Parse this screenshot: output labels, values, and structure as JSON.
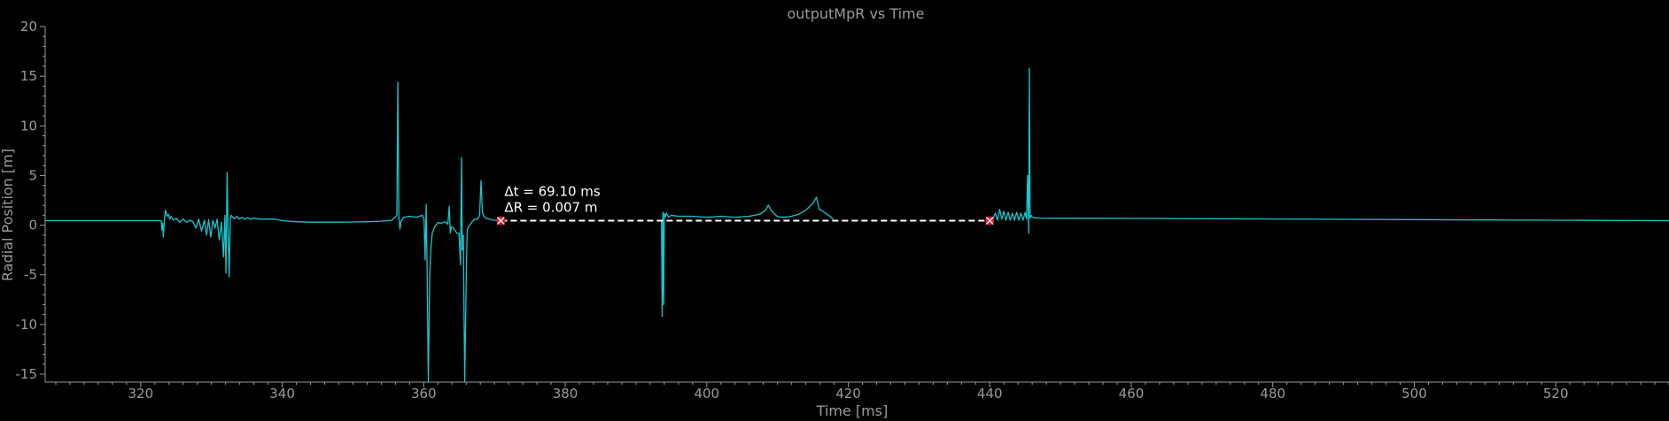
{
  "chart_data": {
    "type": "line",
    "title": "outputMpR vs Time",
    "xlabel": "Time [ms]",
    "ylabel": "Radial Position [m]",
    "xlim": [
      306.5,
      536
    ],
    "ylim": [
      -15.8,
      20
    ],
    "xticks": [
      320,
      340,
      360,
      380,
      400,
      420,
      440,
      460,
      480,
      500,
      520
    ],
    "xtick_labels": [
      "320",
      "340",
      "360",
      "380",
      "400",
      "420",
      "440",
      "460",
      "480",
      "500",
      "520"
    ],
    "yticks": [
      -15,
      -10,
      -5,
      0,
      5,
      10,
      15,
      20
    ],
    "ytick_labels": [
      "-15",
      "-10",
      "-5",
      "0",
      "5",
      "10",
      "15",
      "20"
    ],
    "grid": false,
    "series": [
      {
        "color": "#17c6cf",
        "x": [
          306.5,
          322.9,
          323.0,
          323.1,
          323.2,
          323.35,
          323.5,
          323.7,
          323.9,
          324.1,
          324.3,
          324.6,
          325.0,
          325.5,
          326.0,
          326.5,
          327.0,
          327.4,
          327.8,
          328.2,
          328.6,
          329.0,
          329.3,
          329.6,
          329.9,
          330.2,
          330.5,
          330.8,
          331.1,
          331.4,
          331.7,
          331.9,
          332.05,
          332.2,
          332.35,
          332.5,
          332.65,
          332.8,
          333.0,
          333.3,
          333.6,
          333.9,
          334.3,
          334.7,
          335.1,
          335.5,
          336.0,
          337.0,
          338.0,
          339.0,
          340.0,
          342.0,
          344.0,
          346.0,
          348.0,
          350.0,
          352.0,
          354.0,
          355.5,
          356.2,
          356.35,
          356.5,
          356.65,
          356.8,
          357.2,
          358.0,
          359.0,
          359.8,
          360.05,
          360.2,
          360.35,
          360.5,
          360.65,
          360.85,
          361.0,
          361.2,
          361.6,
          362.0,
          362.5,
          363.0,
          363.4,
          363.6,
          363.75,
          363.9,
          364.1,
          364.4,
          364.7,
          365.0,
          365.2,
          365.35,
          365.45,
          365.6,
          365.7,
          365.8,
          365.95,
          366.05,
          366.15,
          366.3,
          366.5,
          366.8,
          367.2,
          367.6,
          367.9,
          368.1,
          368.3,
          368.5,
          368.8,
          369.3,
          369.8,
          370.5,
          371.0
        ],
        "values": [
          0.45,
          0.45,
          -0.5,
          0.2,
          -1.2,
          0.6,
          1.5,
          0.9,
          1.1,
          0.6,
          0.9,
          0.5,
          0.7,
          0.3,
          0.6,
          0.3,
          0.5,
          0.35,
          -0.3,
          0.6,
          -0.6,
          0.5,
          -1.0,
          0.55,
          -1.2,
          0.5,
          -0.3,
          0.6,
          -1.5,
          0.3,
          -3.2,
          1.0,
          -4.8,
          5.3,
          -0.8,
          -5.2,
          0.6,
          1.0,
          0.8,
          0.65,
          0.9,
          0.6,
          0.8,
          0.6,
          0.75,
          0.6,
          0.7,
          0.6,
          0.6,
          0.6,
          0.45,
          0.35,
          0.3,
          0.3,
          0.3,
          0.32,
          0.35,
          0.4,
          0.5,
          1.0,
          14.4,
          0.7,
          -0.4,
          0.4,
          0.8,
          0.9,
          0.8,
          1.0,
          0.6,
          -3.5,
          2.1,
          -5.5,
          -16.0,
          -5.0,
          -2.5,
          -0.8,
          -0.1,
          0.25,
          0.2,
          0.35,
          0.1,
          1.9,
          -0.8,
          -0.2,
          -0.2,
          -0.5,
          -0.8,
          -0.8,
          -4.0,
          6.8,
          -2.5,
          -1.0,
          -8.5,
          -16.0,
          -8.5,
          -3.5,
          -0.6,
          -0.2,
          0.0,
          0.3,
          0.6,
          0.6,
          1.0,
          4.5,
          1.3,
          0.9,
          0.7,
          0.6,
          0.5,
          0.5,
          0.45
        ]
      },
      {
        "color": "#17c6cf",
        "x": [
          393.6,
          393.7,
          393.8,
          393.9,
          394.0,
          394.1,
          394.3,
          394.6,
          395.0,
          396.0,
          398.0,
          400.0,
          402.0,
          404.0,
          406.0,
          407.5,
          408.3,
          408.7,
          409.2,
          410.0,
          411.0,
          412.0,
          413.0,
          414.0,
          415.0,
          415.5,
          415.9,
          416.4,
          417.0,
          417.5,
          417.9
        ],
        "values": [
          0.5,
          -9.2,
          1.3,
          -8.0,
          1.2,
          0.8,
          1.2,
          0.8,
          1.0,
          0.9,
          0.9,
          0.8,
          0.9,
          0.8,
          0.9,
          1.1,
          1.5,
          2.0,
          1.4,
          0.85,
          0.8,
          0.9,
          1.1,
          1.5,
          2.2,
          2.8,
          1.6,
          1.4,
          1.1,
          0.85,
          0.6
        ]
      },
      {
        "color": "#17c6cf",
        "x": [
          440.3,
          440.8,
          441.1,
          441.4,
          441.7,
          442.0,
          442.3,
          442.6,
          442.9,
          443.2,
          443.5,
          443.8,
          444.1,
          444.4,
          444.7,
          445.0,
          445.2,
          445.35,
          445.5,
          445.6,
          445.7,
          445.85,
          446.0,
          446.3,
          447.0,
          450.0,
          460.0,
          480.0,
          500.0,
          520.0,
          536.0
        ],
        "values": [
          0.45,
          1.2,
          0.5,
          1.6,
          0.6,
          1.4,
          0.5,
          1.3,
          0.5,
          1.2,
          0.5,
          1.3,
          0.5,
          1.2,
          0.5,
          1.3,
          0.6,
          5.0,
          -0.8,
          15.8,
          0.7,
          1.0,
          0.8,
          0.75,
          0.72,
          0.7,
          0.68,
          0.62,
          0.56,
          0.5,
          0.45
        ]
      }
    ],
    "measurement": {
      "x": [
        370.9,
        440.0
      ],
      "y": [
        0.45,
        0.45
      ],
      "line_color": "#ffffff",
      "marker_color": "#e8192c",
      "annotation_lines": [
        "Δt = 69.10 ms",
        "ΔR = 0.007 m"
      ]
    }
  }
}
